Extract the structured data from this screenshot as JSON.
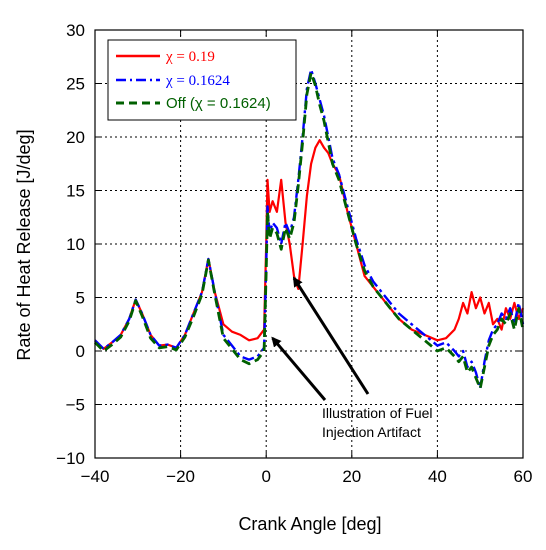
{
  "chart_data": {
    "type": "line",
    "xlabel": "Crank Angle [deg]",
    "ylabel": "Rate of Heat Release [J/deg]",
    "xlim": [
      -40,
      60
    ],
    "ylim": [
      -10,
      30
    ],
    "xticks": [
      -40,
      -20,
      0,
      20,
      40,
      60
    ],
    "yticks": [
      -10,
      -5,
      0,
      5,
      10,
      15,
      20,
      25,
      30
    ],
    "grid": true,
    "legend_position": "top-left",
    "annotation": {
      "lines": [
        "Illustration of Fuel",
        "Injection Artifact"
      ],
      "arrow_targets": [
        [
          1.5,
          1.2
        ],
        [
          6.5,
          6.8
        ]
      ]
    },
    "series": [
      {
        "name": "χ = 0.19",
        "color": "#ff0000",
        "dash": "solid",
        "x": [
          -40,
          -38,
          -36,
          -34,
          -32,
          -30.5,
          -29,
          -27,
          -25,
          -23,
          -21,
          -19,
          -17,
          -15,
          -13.5,
          -12,
          -10,
          -8,
          -6,
          -4,
          -2,
          -0.5,
          0,
          0.3,
          0.8,
          1.5,
          2.5,
          3.5,
          4.5,
          5.5,
          6.5,
          7.5,
          8.5,
          9.5,
          10.5,
          11.5,
          12.5,
          13.5,
          14.5,
          15.5,
          17,
          19,
          21,
          23,
          25,
          28,
          31,
          34,
          37,
          40,
          42,
          44,
          45,
          46,
          47,
          48,
          49,
          50,
          51,
          52,
          53,
          54,
          55,
          56,
          57,
          58,
          59,
          60
        ],
        "y": [
          1,
          0.2,
          0.8,
          1.5,
          3,
          4.8,
          3.5,
          1.5,
          0.5,
          0.6,
          0.3,
          1.5,
          3.5,
          5.5,
          8.6,
          5.5,
          2.5,
          1.8,
          1.5,
          1,
          1.2,
          2,
          10,
          16,
          13,
          14,
          13,
          16,
          12,
          10,
          7,
          5.8,
          10,
          14.5,
          17.5,
          19,
          19.7,
          19,
          18.5,
          17.5,
          16.5,
          13,
          10,
          7,
          6,
          4.5,
          3,
          2,
          1.5,
          1,
          1.2,
          2,
          3,
          4.5,
          3.5,
          5.5,
          4,
          5,
          3.5,
          4.5,
          2.5,
          3,
          2,
          4,
          3,
          4.5,
          3,
          4
        ]
      },
      {
        "name": "χ = 0.1624",
        "color": "#0000ff",
        "dash": "dashdot",
        "x": [
          -40,
          -38,
          -36,
          -34,
          -32,
          -30.5,
          -29,
          -27,
          -25,
          -23,
          -21,
          -19,
          -17,
          -15,
          -13.5,
          -12,
          -10,
          -8,
          -6,
          -4,
          -2,
          -0.5,
          0,
          0.3,
          0.8,
          1.5,
          2.5,
          3.5,
          4.5,
          5.5,
          6.5,
          7.5,
          8.5,
          9.5,
          10.5,
          11.5,
          12.5,
          13.5,
          14.5,
          15.5,
          17,
          19,
          21,
          23,
          25,
          28,
          31,
          34,
          37,
          40,
          42,
          44,
          45,
          46,
          47,
          48,
          49,
          50,
          51,
          52,
          53,
          54,
          55,
          56,
          57,
          58,
          59,
          60
        ],
        "y": [
          1,
          0.2,
          0.8,
          1.5,
          3,
          4.8,
          3.5,
          1.5,
          0.5,
          0.6,
          0.3,
          1.5,
          3.5,
          5.5,
          8.6,
          5.5,
          1.5,
          0.5,
          -0.5,
          -0.8,
          -0.5,
          0.3,
          8,
          13.5,
          11,
          12,
          11.5,
          10,
          12,
          11,
          12.5,
          16,
          20,
          24.5,
          26.3,
          25,
          23.5,
          22,
          20,
          18,
          16.5,
          13.5,
          10.5,
          8,
          6.5,
          5,
          3.5,
          2.5,
          1.5,
          0.5,
          0.8,
          0,
          -0.5,
          0,
          -1.5,
          -1,
          -2,
          -3.5,
          -1,
          1,
          2,
          2.5,
          3.5,
          3,
          4,
          2.5,
          4.5,
          2.5
        ]
      },
      {
        "name": "Off (χ = 0.1624)",
        "color": "#006000",
        "dash": "dashed",
        "x": [
          -40,
          -38,
          -36,
          -34,
          -32,
          -30.5,
          -29,
          -27,
          -25,
          -23,
          -21,
          -19,
          -17,
          -15,
          -13.5,
          -12,
          -10,
          -8,
          -6,
          -4,
          -2,
          -0.5,
          0,
          0.3,
          0.8,
          1.5,
          2.5,
          3.5,
          4.5,
          5.5,
          6.5,
          7.5,
          8.5,
          9.5,
          10.5,
          11.5,
          12.5,
          13.5,
          14.5,
          15.5,
          17,
          19,
          21,
          23,
          25,
          28,
          31,
          34,
          37,
          40,
          42,
          44,
          45,
          46,
          47,
          48,
          49,
          50,
          51,
          52,
          53,
          54,
          55,
          56,
          57,
          58,
          59,
          60
        ],
        "y": [
          0.8,
          0,
          0.6,
          1.3,
          2.8,
          4.7,
          3.3,
          1.2,
          0.3,
          0.4,
          0.1,
          1.3,
          3.2,
          5.3,
          8.5,
          5.3,
          1.2,
          0.2,
          -0.8,
          -1.2,
          -0.8,
          0,
          7.5,
          13,
          10.5,
          11.5,
          11,
          9.5,
          11.5,
          10.5,
          12,
          15.5,
          19.5,
          24,
          26,
          24.8,
          23,
          21.5,
          19.5,
          17.5,
          16,
          13,
          10,
          7.5,
          6,
          4.5,
          3,
          2,
          1,
          0,
          0.3,
          -0.5,
          -1,
          -0.5,
          -2,
          -1.5,
          -2.5,
          -3.5,
          -1.5,
          0.5,
          1.5,
          2,
          3,
          2.5,
          3.5,
          2,
          4,
          2
        ]
      }
    ]
  }
}
